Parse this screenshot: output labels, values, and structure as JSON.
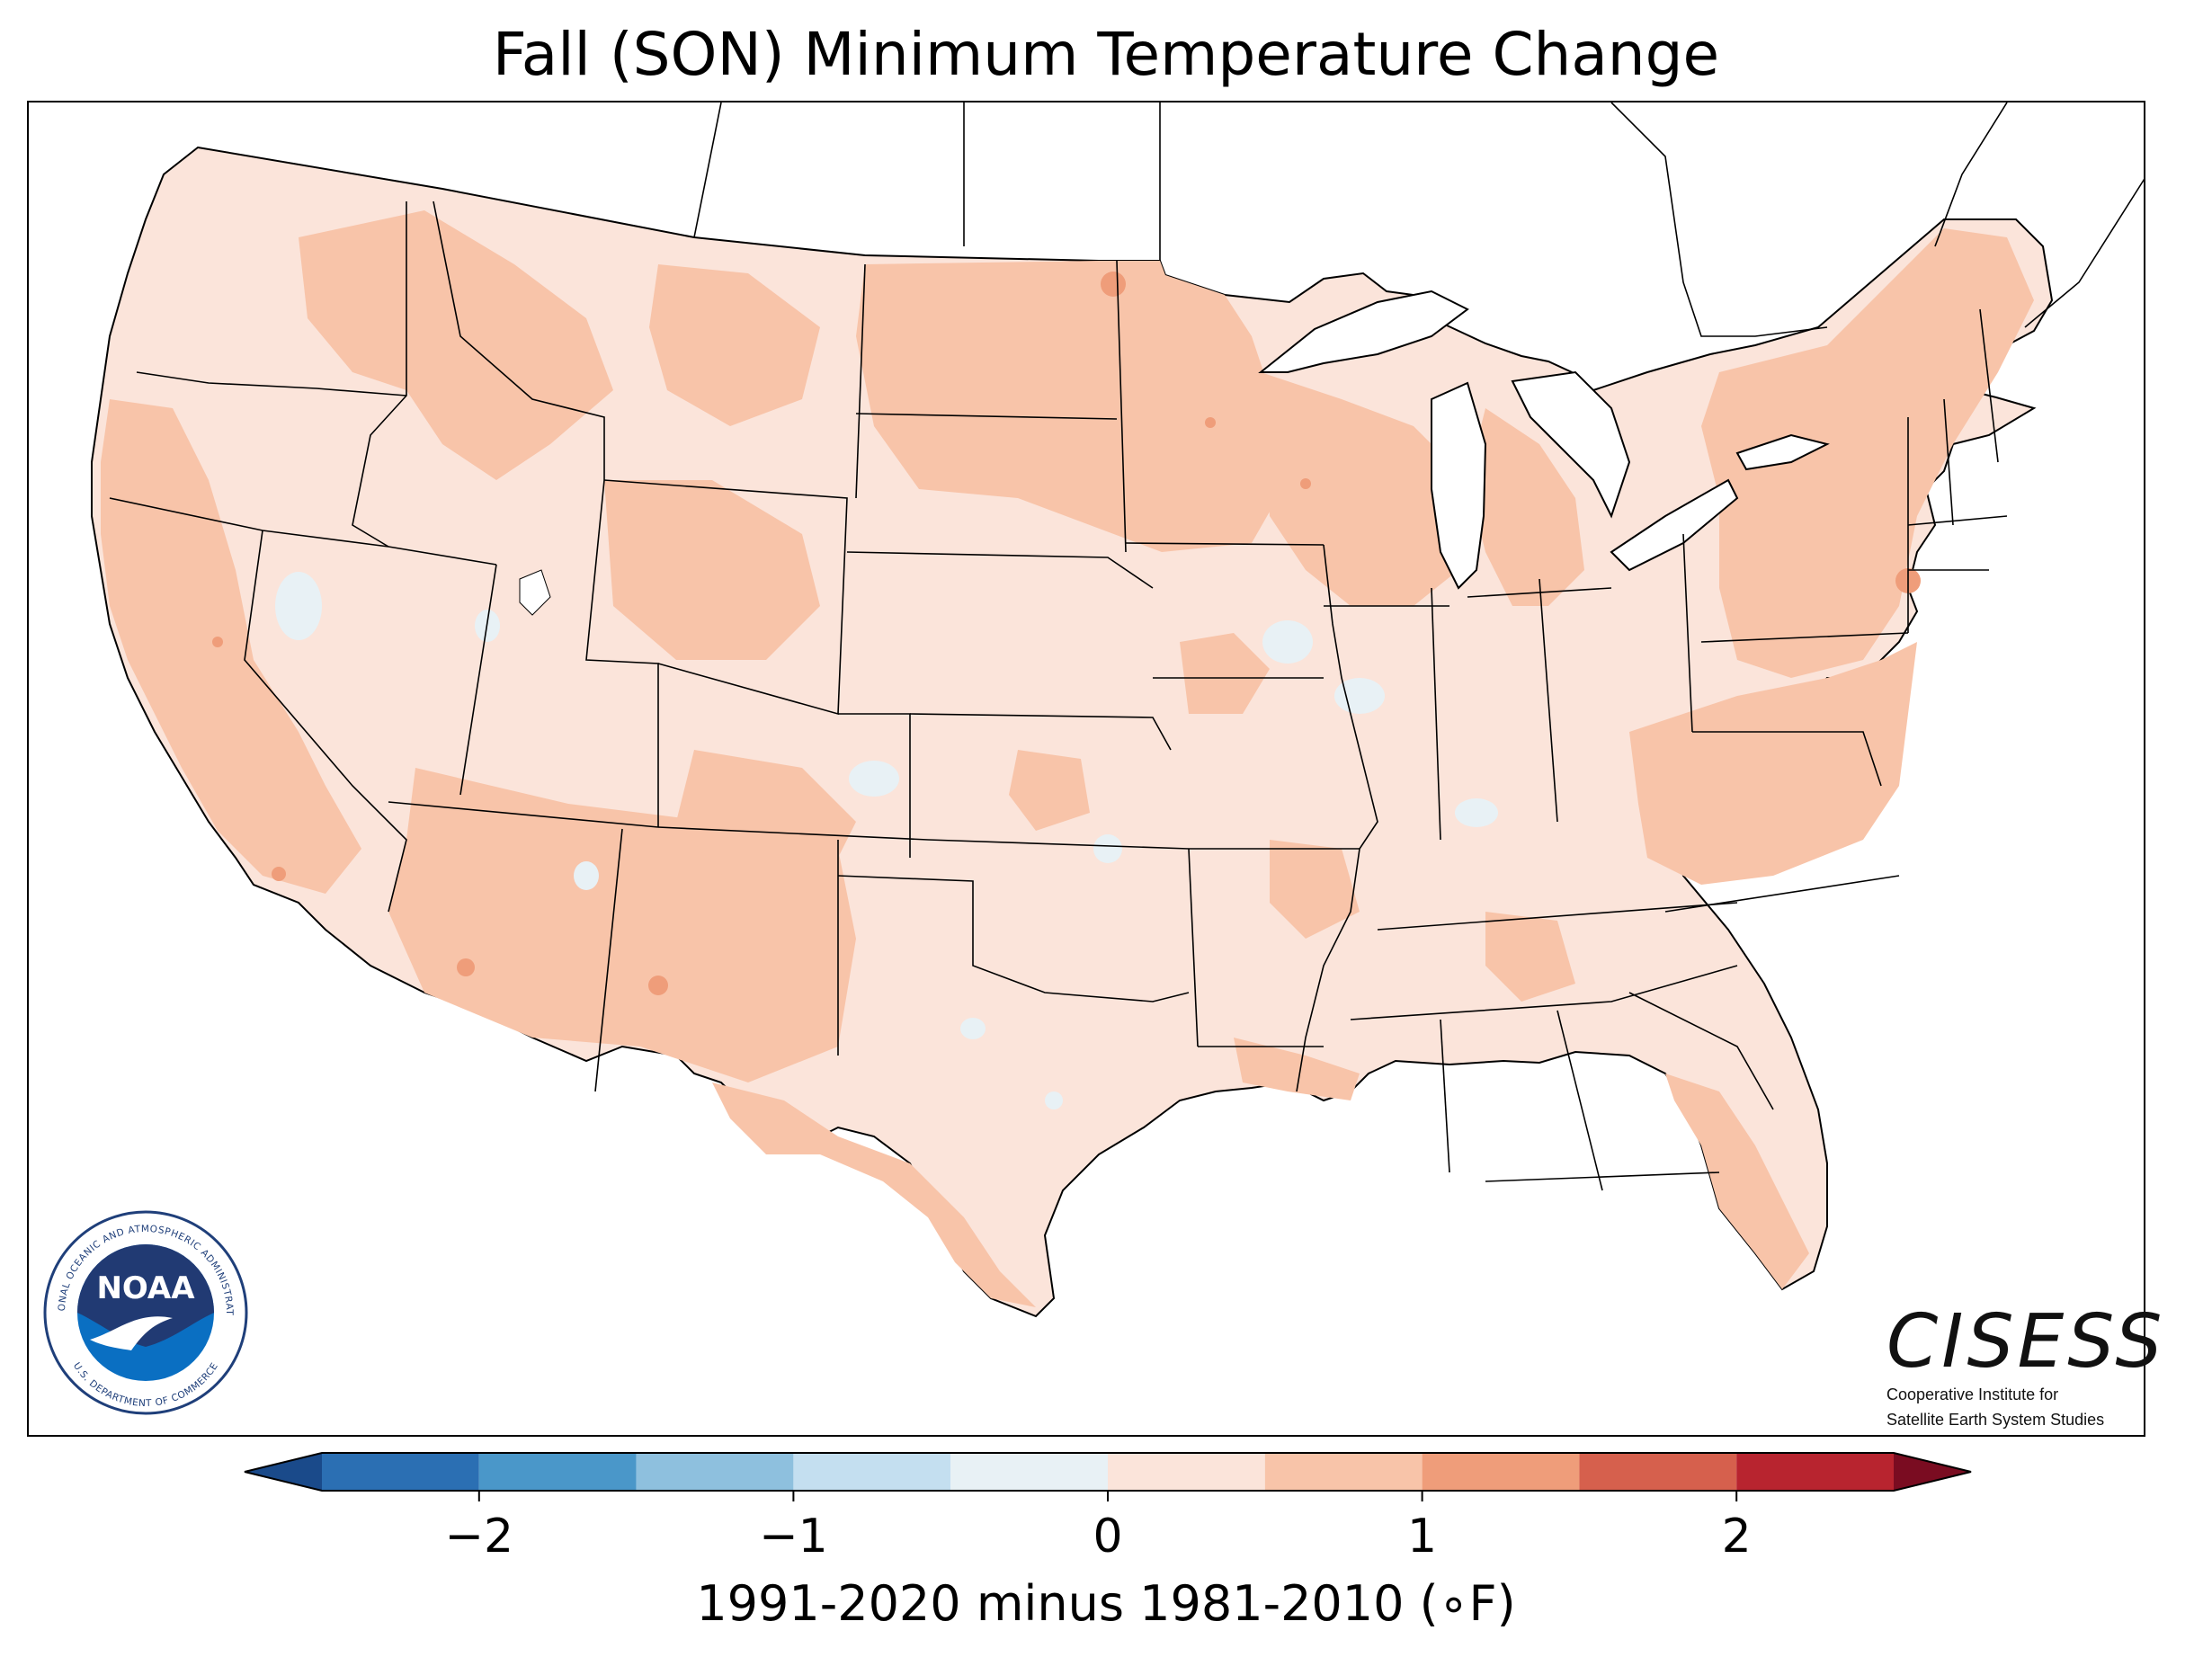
{
  "title": "Fall (SON) Minimum Temperature Change",
  "colorbar": {
    "label": "1991-2020 minus 1981-2010 (∘F)",
    "ticks": [
      {
        "value": -2,
        "label": "−2"
      },
      {
        "value": -1,
        "label": "−1"
      },
      {
        "value": 0,
        "label": "0"
      },
      {
        "value": 1,
        "label": "1"
      },
      {
        "value": 2,
        "label": "2"
      }
    ],
    "range": [
      -2.5,
      2.5
    ],
    "bin_width": 0.5,
    "extend": "both",
    "colors": [
      "#1a4a8a",
      "#2b6fb3",
      "#4a97c9",
      "#8ec0de",
      "#c4dff0",
      "#e8f1f5",
      "#fbe4da",
      "#f8c4a9",
      "#ef9d7a",
      "#d6604d",
      "#b8242f",
      "#7a0c21"
    ]
  },
  "map": {
    "region": "Contiguous United States",
    "fill_colors": {
      "base": "#fbe4da",
      "warm": "#f8c4a9",
      "warmer": "#ef9d7a",
      "cool": "#e8f1f5",
      "water": "#ffffff"
    }
  },
  "logos": {
    "noaa": {
      "word": "NOAA",
      "ring_text": "NATIONAL OCEANIC AND ATMOSPHERIC ADMINISTRATION",
      "bottom_text": "U.S. DEPARTMENT OF COMMERCE"
    },
    "cisess": {
      "word": "CISESS",
      "line1": "Cooperative Institute for",
      "line2": "Satellite Earth System Studies"
    }
  }
}
